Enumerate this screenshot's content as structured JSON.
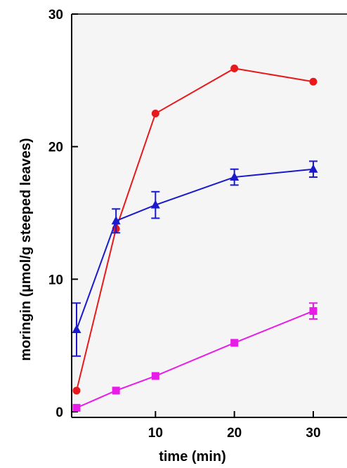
{
  "chart_data": {
    "type": "line",
    "title": "",
    "xlabel": "time (min)",
    "ylabel": "moringin (µmol/g steeped leaves)",
    "xlim": [
      0,
      30
    ],
    "ylim": [
      0,
      30
    ],
    "xticks": [
      10,
      20,
      30
    ],
    "yticks": [
      0,
      10,
      20,
      30
    ],
    "grid": false,
    "legend": "none",
    "background": "#f5f5f5",
    "series": [
      {
        "color": "#e8191c",
        "marker": "circle",
        "points": [
          {
            "x": 0,
            "y": 1.6
          },
          {
            "x": 5,
            "y": 13.8
          },
          {
            "x": 10,
            "y": 22.5
          },
          {
            "x": 20,
            "y": 25.9
          },
          {
            "x": 30,
            "y": 24.9
          }
        ]
      },
      {
        "color": "#1a1acc",
        "marker": "triangle",
        "points": [
          {
            "x": 0,
            "y": 6.2,
            "err": 2.0
          },
          {
            "x": 5,
            "y": 14.4,
            "err": 0.9
          },
          {
            "x": 10,
            "y": 15.6,
            "err": 1.0
          },
          {
            "x": 20,
            "y": 17.7,
            "err": 0.6
          },
          {
            "x": 30,
            "y": 18.3,
            "err": 0.6
          }
        ]
      },
      {
        "color": "#e81ce8",
        "marker": "square",
        "points": [
          {
            "x": 0,
            "y": 0.3
          },
          {
            "x": 5,
            "y": 1.6
          },
          {
            "x": 10,
            "y": 2.7
          },
          {
            "x": 20,
            "y": 5.2
          },
          {
            "x": 30,
            "y": 7.6,
            "err": 0.6
          }
        ]
      }
    ]
  }
}
